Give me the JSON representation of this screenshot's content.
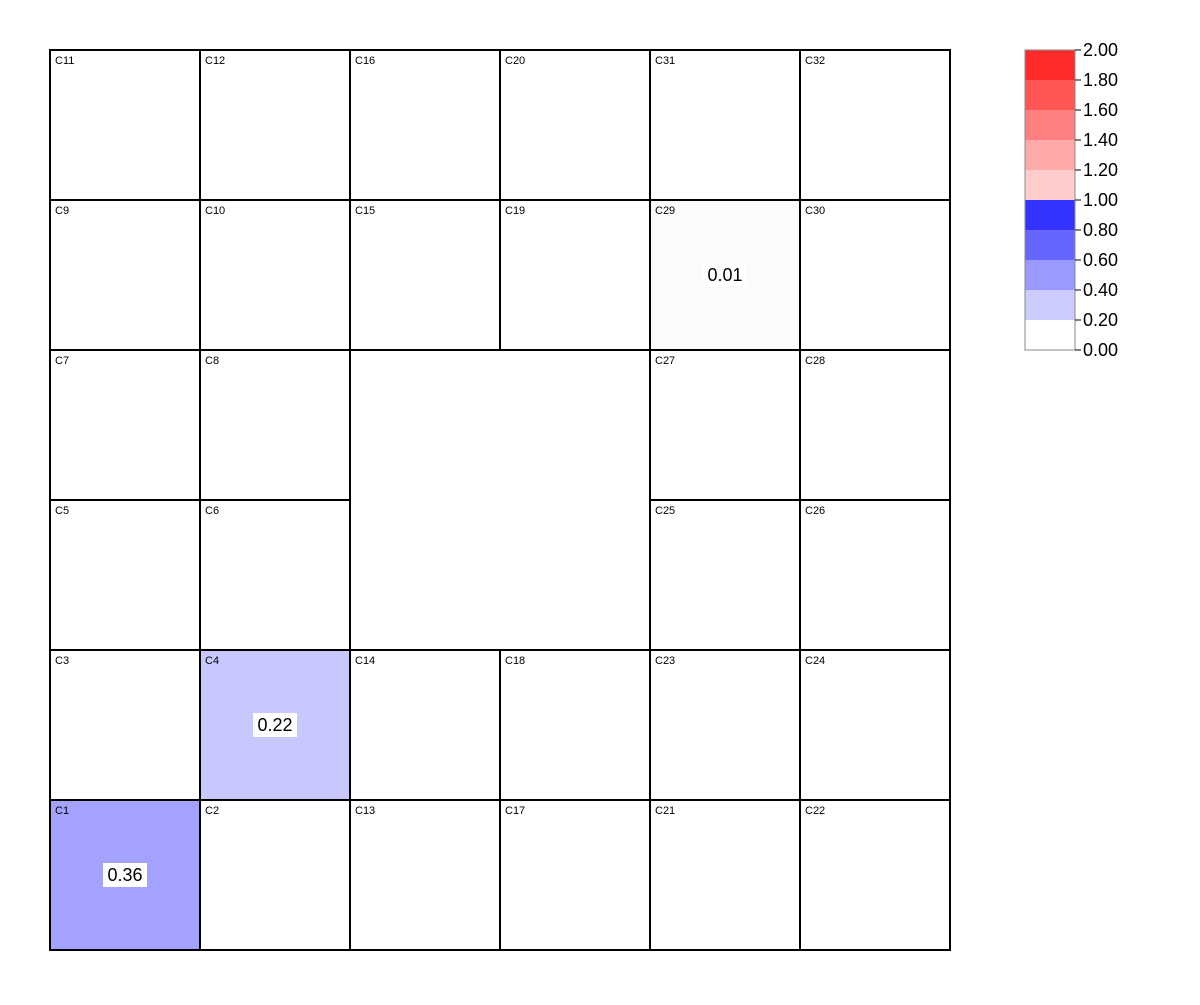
{
  "chart_data": {
    "type": "heatmap",
    "grid_columns": 6,
    "grid_rows": 6,
    "cells": [
      {
        "id": "C11",
        "row": 0,
        "col": 0,
        "value": null
      },
      {
        "id": "C12",
        "row": 0,
        "col": 1,
        "value": null
      },
      {
        "id": "C16",
        "row": 0,
        "col": 2,
        "value": null
      },
      {
        "id": "C20",
        "row": 0,
        "col": 3,
        "value": null
      },
      {
        "id": "C31",
        "row": 0,
        "col": 4,
        "value": null
      },
      {
        "id": "C32",
        "row": 0,
        "col": 5,
        "value": null
      },
      {
        "id": "C9",
        "row": 1,
        "col": 0,
        "value": null
      },
      {
        "id": "C10",
        "row": 1,
        "col": 1,
        "value": null
      },
      {
        "id": "C15",
        "row": 1,
        "col": 2,
        "value": null
      },
      {
        "id": "C19",
        "row": 1,
        "col": 3,
        "value": null
      },
      {
        "id": "C29",
        "row": 1,
        "col": 4,
        "value": 0.01,
        "label": "0.01"
      },
      {
        "id": "C30",
        "row": 1,
        "col": 5,
        "value": null
      },
      {
        "id": "C7",
        "row": 2,
        "col": 0,
        "value": null
      },
      {
        "id": "C8",
        "row": 2,
        "col": 1,
        "value": null
      },
      {
        "id": "C27",
        "row": 2,
        "col": 4,
        "value": null
      },
      {
        "id": "C28",
        "row": 2,
        "col": 5,
        "value": null
      },
      {
        "id": "C5",
        "row": 3,
        "col": 0,
        "value": null
      },
      {
        "id": "C6",
        "row": 3,
        "col": 1,
        "value": null
      },
      {
        "id": "C25",
        "row": 3,
        "col": 4,
        "value": null
      },
      {
        "id": "C26",
        "row": 3,
        "col": 5,
        "value": null
      },
      {
        "id": "C3",
        "row": 4,
        "col": 0,
        "value": null
      },
      {
        "id": "C4",
        "row": 4,
        "col": 1,
        "value": 0.22,
        "label": "0.22"
      },
      {
        "id": "C14",
        "row": 4,
        "col": 2,
        "value": null
      },
      {
        "id": "C18",
        "row": 4,
        "col": 3,
        "value": null
      },
      {
        "id": "C23",
        "row": 4,
        "col": 4,
        "value": null
      },
      {
        "id": "C24",
        "row": 4,
        "col": 5,
        "value": null
      },
      {
        "id": "C1",
        "row": 5,
        "col": 0,
        "value": 0.36,
        "label": "0.36"
      },
      {
        "id": "C2",
        "row": 5,
        "col": 1,
        "value": null
      },
      {
        "id": "C13",
        "row": 5,
        "col": 2,
        "value": null
      },
      {
        "id": "C17",
        "row": 5,
        "col": 3,
        "value": null
      },
      {
        "id": "C21",
        "row": 5,
        "col": 4,
        "value": null
      },
      {
        "id": "C22",
        "row": 5,
        "col": 5,
        "value": null
      }
    ],
    "colorbar": {
      "min": 0.0,
      "max": 2.0,
      "ticks": [
        "0.00",
        "0.20",
        "0.40",
        "0.60",
        "0.80",
        "1.00",
        "1.20",
        "1.40",
        "1.60",
        "1.80",
        "2.00"
      ],
      "bands": [
        {
          "from": 0.0,
          "to": 0.2,
          "color": "#ffffff"
        },
        {
          "from": 0.2,
          "to": 0.4,
          "color": "#ccccff"
        },
        {
          "from": 0.4,
          "to": 0.6,
          "color": "#9999ff"
        },
        {
          "from": 0.6,
          "to": 0.8,
          "color": "#6666ff"
        },
        {
          "from": 0.8,
          "to": 1.0,
          "color": "#3333ff"
        },
        {
          "from": 1.0,
          "to": 1.2,
          "color": "#ffcccc"
        },
        {
          "from": 1.2,
          "to": 1.4,
          "color": "#ffaaaa"
        },
        {
          "from": 1.4,
          "to": 1.6,
          "color": "#ff8080"
        },
        {
          "from": 1.6,
          "to": 1.8,
          "color": "#ff5555"
        },
        {
          "from": 1.8,
          "to": 2.0,
          "color": "#ff2a2a"
        }
      ]
    }
  },
  "cell_colors": {
    "C1": "#a3a3ff",
    "C4": "#c8c8ff",
    "C29": "#fbfbfd"
  }
}
